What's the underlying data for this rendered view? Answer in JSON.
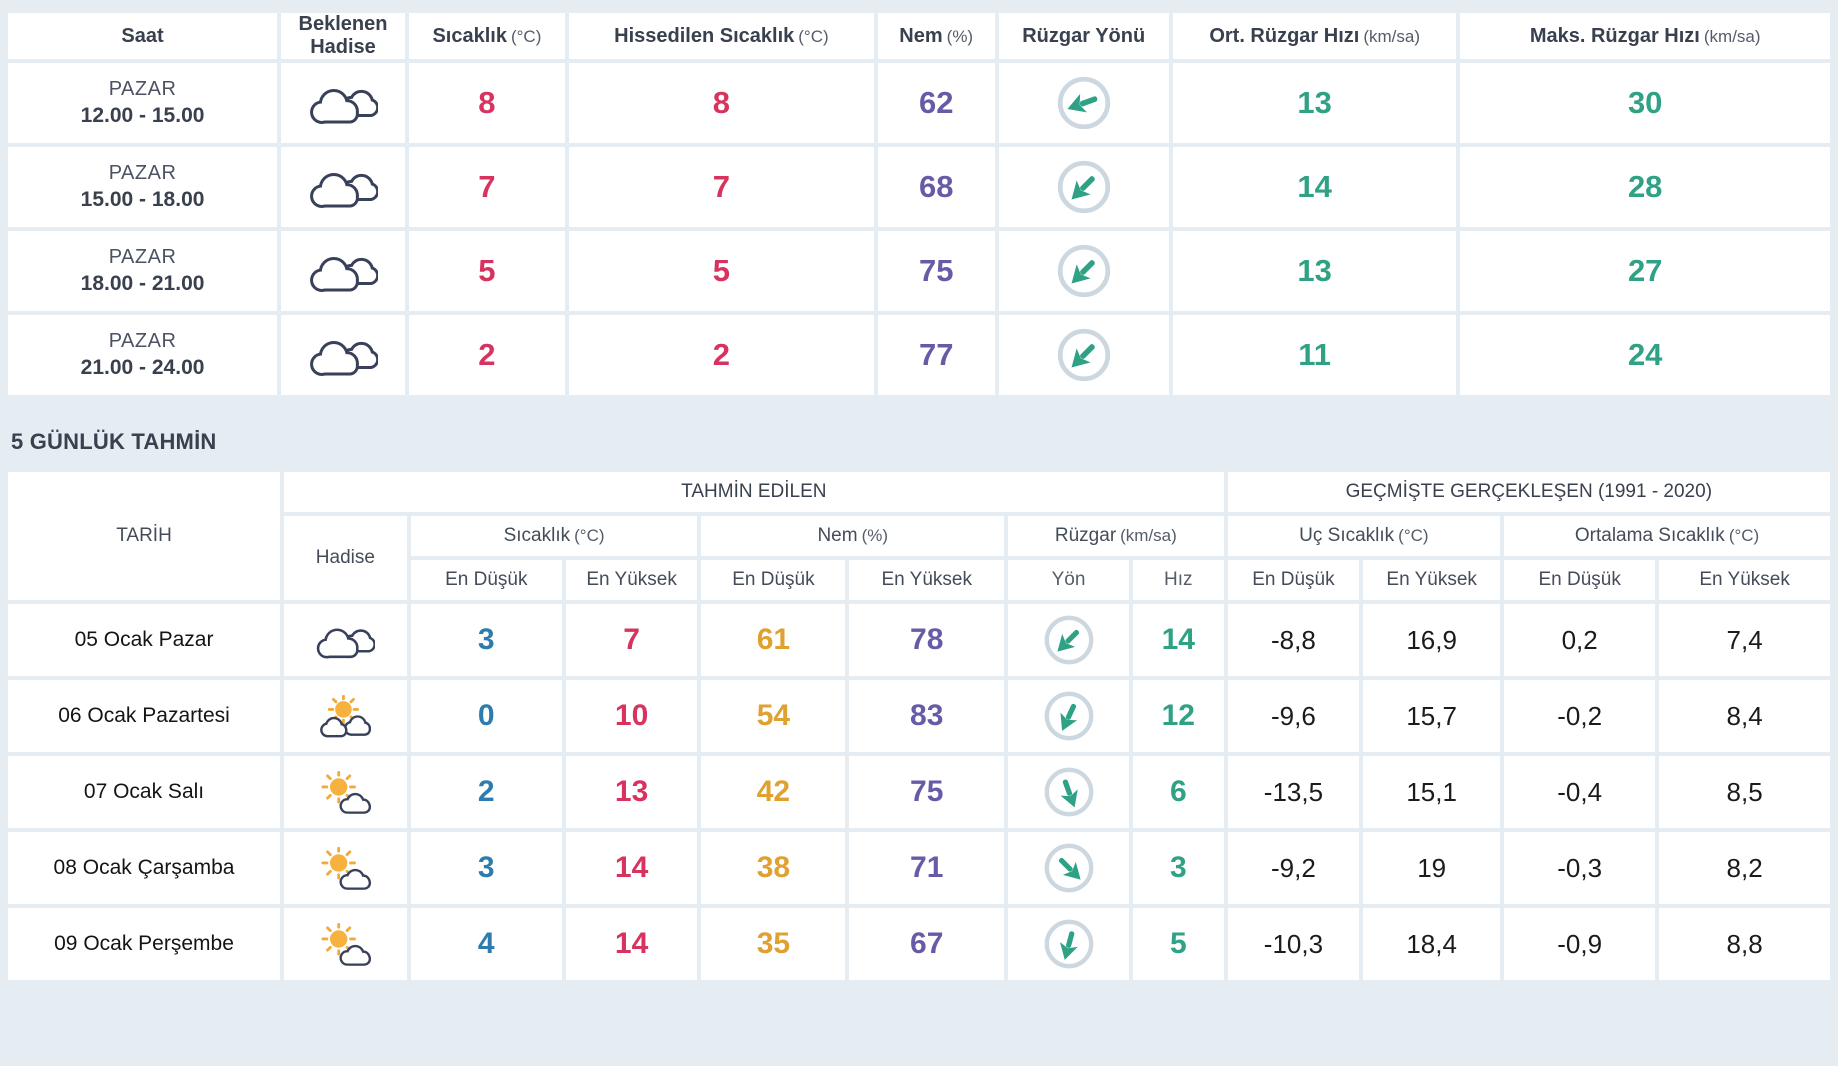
{
  "section_title": "5 GÜNLÜK TAHMİN",
  "colors": {
    "red": "#d8335f",
    "blue": "#2d7cad",
    "orange": "#dfa12f",
    "purple": "#675ba7",
    "teal": "#2fa184",
    "navy": "#39404e",
    "background": "#e5edf3"
  },
  "hourly": {
    "headers": {
      "saat": {
        "label": "Saat",
        "unit": ""
      },
      "hadise": {
        "label": "Beklenen Hadise",
        "unit": ""
      },
      "sicaklik": {
        "label": "Sıcaklık",
        "unit": "(°C)"
      },
      "hissedilen": {
        "label": "Hissedilen Sıcaklık",
        "unit": "(°C)"
      },
      "nem": {
        "label": "Nem",
        "unit": "(%)"
      },
      "ruzgar_yonu": {
        "label": "Rüzgar Yönü",
        "unit": ""
      },
      "ort_hiz": {
        "label": "Ort. Rüzgar Hızı",
        "unit": "(km/sa)"
      },
      "maks_hiz": {
        "label": "Maks. Rüzgar Hızı",
        "unit": "(km/sa)"
      }
    },
    "rows": [
      {
        "day": "PAZAR",
        "time": "12.00 - 15.00",
        "icon": "cloudy",
        "temp": "8",
        "feels": "8",
        "humidity": "62",
        "wind_dir_deg": 250,
        "wind_avg": "13",
        "wind_max": "30"
      },
      {
        "day": "PAZAR",
        "time": "15.00 - 18.00",
        "icon": "cloudy",
        "temp": "7",
        "feels": "7",
        "humidity": "68",
        "wind_dir_deg": 225,
        "wind_avg": "14",
        "wind_max": "28"
      },
      {
        "day": "PAZAR",
        "time": "18.00 - 21.00",
        "icon": "cloudy",
        "temp": "5",
        "feels": "5",
        "humidity": "75",
        "wind_dir_deg": 225,
        "wind_avg": "13",
        "wind_max": "27"
      },
      {
        "day": "PAZAR",
        "time": "21.00 - 24.00",
        "icon": "cloudy",
        "temp": "2",
        "feels": "2",
        "humidity": "77",
        "wind_dir_deg": 225,
        "wind_avg": "11",
        "wind_max": "24"
      }
    ]
  },
  "daily": {
    "group_predicted": "TAHMİN EDİLEN",
    "group_historical": "GEÇMİŞTE GERÇEKLEŞEN (1991 - 2020)",
    "headers": {
      "tarih": "TARİH",
      "hadise": "Hadise",
      "sicaklik": {
        "label": "Sıcaklık",
        "unit": "(°C)"
      },
      "nem": {
        "label": "Nem",
        "unit": "(%)"
      },
      "ruzgar": {
        "label": "Rüzgar",
        "unit": "(km/sa)"
      },
      "uc_sicaklik": {
        "label": "Uç Sıcaklık",
        "unit": "(°C)"
      },
      "ortalama_sicaklik": {
        "label": "Ortalama Sıcaklık",
        "unit": "(°C)"
      },
      "min": "En Düşük",
      "max": "En Yüksek",
      "yon": "Yön",
      "hiz": "Hız"
    },
    "rows": [
      {
        "date": "05 Ocak Pazar",
        "icon": "cloudy",
        "temp_min": "3",
        "temp_max": "7",
        "hum_min": "61",
        "hum_max": "78",
        "wind_dir_deg": 225,
        "wind_speed": "14",
        "ext_min": "-8,8",
        "ext_max": "16,9",
        "avg_min": "0,2",
        "avg_max": "7,4"
      },
      {
        "date": "06 Ocak Pazartesi",
        "icon": "sun-clouds",
        "temp_min": "0",
        "temp_max": "10",
        "hum_min": "54",
        "hum_max": "83",
        "wind_dir_deg": 205,
        "wind_speed": "12",
        "ext_min": "-9,6",
        "ext_max": "15,7",
        "avg_min": "-0,2",
        "avg_max": "8,4"
      },
      {
        "date": "07 Ocak Salı",
        "icon": "sun-cloud",
        "temp_min": "2",
        "temp_max": "13",
        "hum_min": "42",
        "hum_max": "75",
        "wind_dir_deg": 160,
        "wind_speed": "6",
        "ext_min": "-13,5",
        "ext_max": "15,1",
        "avg_min": "-0,4",
        "avg_max": "8,5"
      },
      {
        "date": "08 Ocak Çarşamba",
        "icon": "sun-cloud",
        "temp_min": "3",
        "temp_max": "14",
        "hum_min": "38",
        "hum_max": "71",
        "wind_dir_deg": 135,
        "wind_speed": "3",
        "ext_min": "-9,2",
        "ext_max": "19",
        "avg_min": "-0,3",
        "avg_max": "8,2"
      },
      {
        "date": "09 Ocak Perşembe",
        "icon": "sun-cloud",
        "temp_min": "4",
        "temp_max": "14",
        "hum_min": "35",
        "hum_max": "67",
        "wind_dir_deg": 195,
        "wind_speed": "5",
        "ext_min": "-10,3",
        "ext_max": "18,4",
        "avg_min": "-0,9",
        "avg_max": "8,8"
      }
    ]
  }
}
